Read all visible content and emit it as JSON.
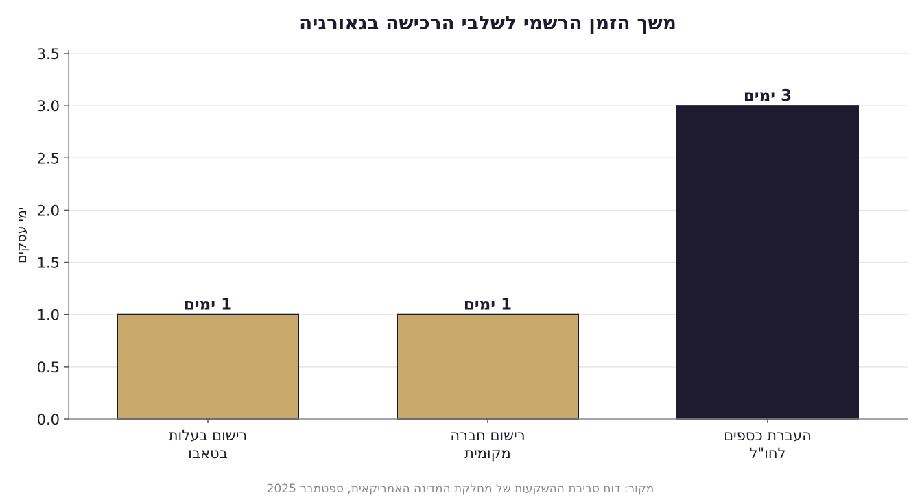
{
  "chart_data": {
    "type": "bar",
    "title": "משך הזמן הרשמי לשלבי הרכישה בגאורגיה",
    "ylabel": "ימי עסקים",
    "xlabel": "",
    "ylim": [
      0,
      3.5
    ],
    "y_ticks": [
      "0.0",
      "0.5",
      "1.0",
      "1.5",
      "2.0",
      "2.5",
      "3.0",
      "3.5"
    ],
    "y_tick_values": [
      0,
      0.5,
      1.0,
      1.5,
      2.0,
      2.5,
      3.0,
      3.5
    ],
    "grid": true,
    "categories": [
      [
        "רישום בעלות",
        "בטאבו"
      ],
      [
        "רישום חברה",
        "מקומית"
      ],
      [
        "העברת כספים",
        "לחו\"ל"
      ]
    ],
    "values": [
      1,
      1,
      3
    ],
    "data_labels": [
      "1 ימים",
      "1 ימים",
      "3 ימים"
    ],
    "bar_colors": [
      "#c8a96b",
      "#c8a96b",
      "#1e1b2e"
    ],
    "bar_edge_color": "#1e1b2e",
    "source": "מקור: דוח סביבת ההשקעות של מחלקת המדינה האמריקאית, ספטמבר 2025"
  }
}
